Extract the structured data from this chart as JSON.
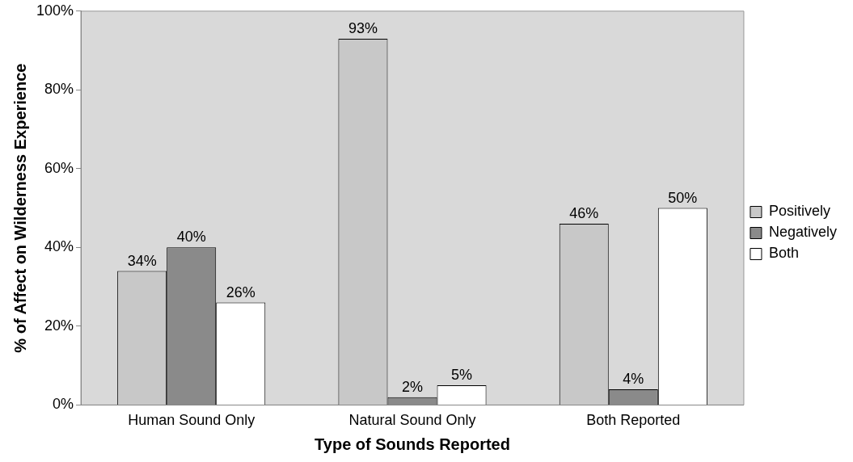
{
  "chart_data": {
    "type": "bar",
    "xlabel": "Type of Sounds Reported",
    "ylabel": "% of Affect on Wilderness Experience",
    "categories": [
      "Human Sound Only",
      "Natural Sound Only",
      "Both Reported"
    ],
    "series": [
      {
        "name": "Positively",
        "color": "#c8c8c8",
        "values": [
          34,
          93,
          46
        ],
        "value_labels": [
          "34%",
          "93%",
          "46%"
        ]
      },
      {
        "name": "Negatively",
        "color": "#8a8a8a",
        "values": [
          40,
          2,
          4
        ],
        "value_labels": [
          "40%",
          "2%",
          "4%"
        ]
      },
      {
        "name": "Both",
        "color": "#ffffff",
        "values": [
          26,
          5,
          50
        ],
        "value_labels": [
          "26%",
          "5%",
          "50%"
        ]
      }
    ],
    "ylim": [
      0,
      100
    ],
    "yticks": [
      {
        "value": 0,
        "label": "0%"
      },
      {
        "value": 20,
        "label": "20%"
      },
      {
        "value": 40,
        "label": "40%"
      },
      {
        "value": 60,
        "label": "60%"
      },
      {
        "value": 80,
        "label": "80%"
      },
      {
        "value": 100,
        "label": "100%"
      }
    ],
    "grid": false,
    "legend": "right"
  }
}
